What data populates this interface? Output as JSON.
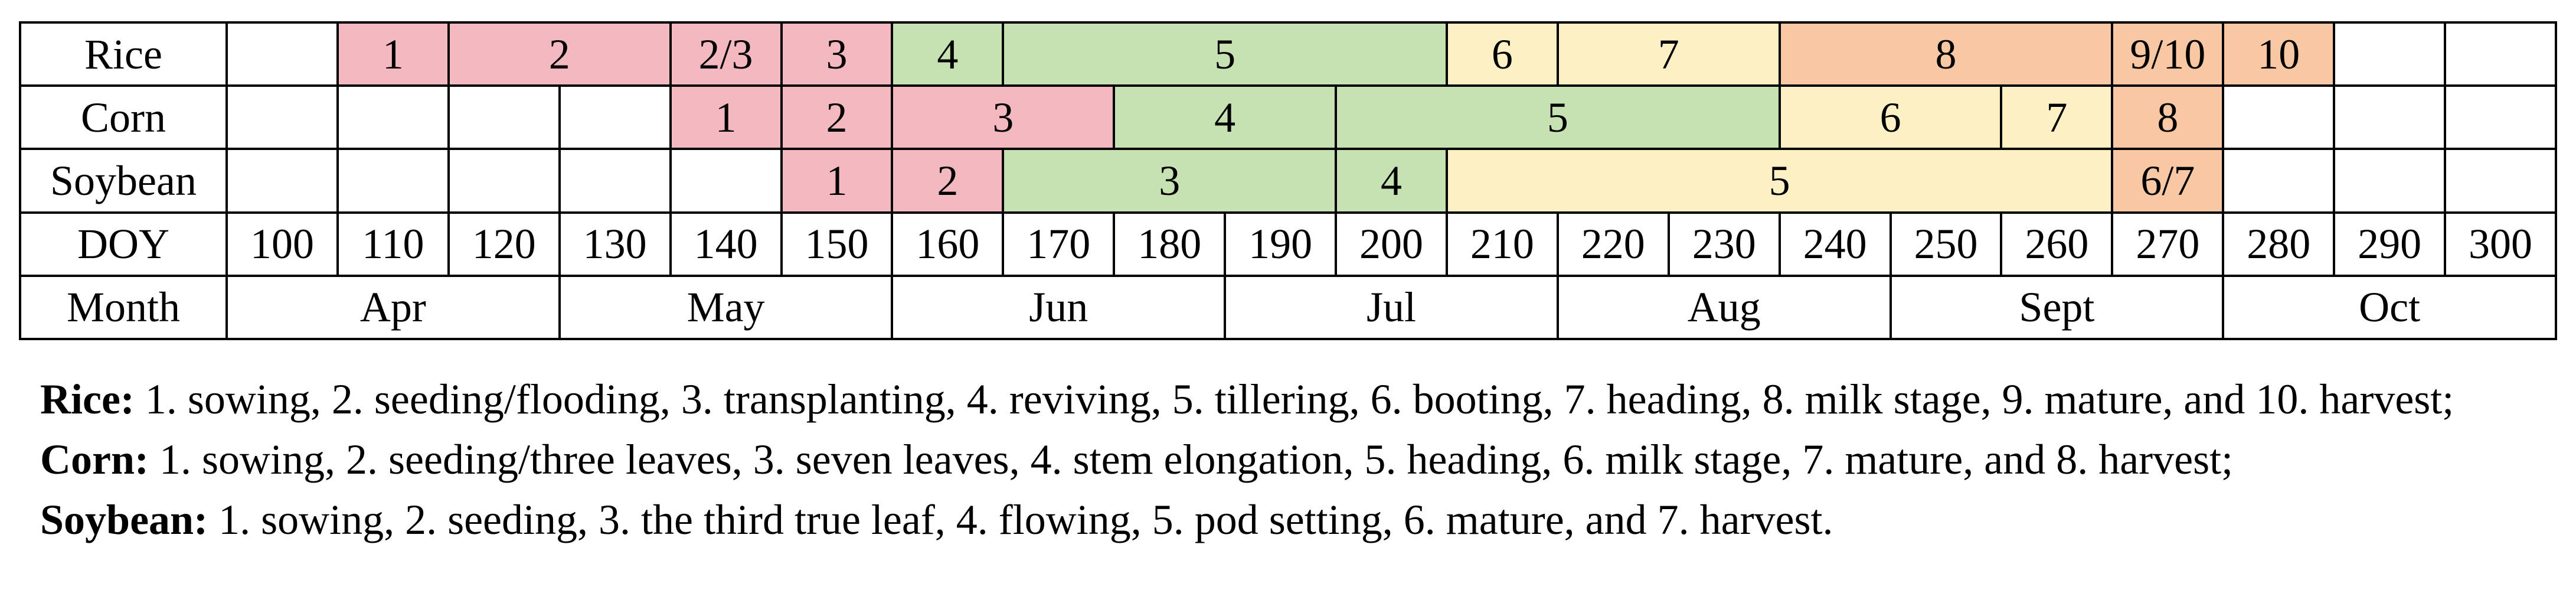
{
  "chart_data": {
    "type": "table",
    "rows": [
      "Rice",
      "Corn",
      "Soybean",
      "DOY",
      "Month"
    ],
    "doy": [
      "100",
      "110",
      "120",
      "130",
      "140",
      "150",
      "160",
      "170",
      "180",
      "190",
      "200",
      "210",
      "220",
      "230",
      "240",
      "250",
      "260",
      "270",
      "280",
      "290",
      "300"
    ],
    "months": [
      {
        "label": "Apr",
        "start": 100,
        "end": 120
      },
      {
        "label": "May",
        "start": 130,
        "end": 150
      },
      {
        "label": "Jun",
        "start": 160,
        "end": 180
      },
      {
        "label": "Jul",
        "start": 190,
        "end": 210
      },
      {
        "label": "Aug",
        "start": 220,
        "end": 240
      },
      {
        "label": "Sept",
        "start": 250,
        "end": 270
      },
      {
        "label": "Oct",
        "start": 280,
        "end": 300
      }
    ],
    "crops": [
      {
        "name": "Rice",
        "stages": [
          {
            "label": "1",
            "start": 110,
            "end": 110,
            "color": "#F4B8C0"
          },
          {
            "label": "2",
            "start": 120,
            "end": 130,
            "color": "#F4B8C0"
          },
          {
            "label": "2/3",
            "start": 140,
            "end": 140,
            "color": "#F4B8C0"
          },
          {
            "label": "3",
            "start": 150,
            "end": 150,
            "color": "#F4B8C0"
          },
          {
            "label": "4",
            "start": 160,
            "end": 160,
            "color": "#C6E2B3"
          },
          {
            "label": "5",
            "start": 170,
            "end": 200,
            "color": "#C6E2B3"
          },
          {
            "label": "6",
            "start": 210,
            "end": 210,
            "color": "#FDF0C4"
          },
          {
            "label": "7",
            "start": 220,
            "end": 230,
            "color": "#FDF0C4"
          },
          {
            "label": "8",
            "start": 240,
            "end": 260,
            "color": "#F8C8A4"
          },
          {
            "label": "9/10",
            "start": 270,
            "end": 270,
            "color": "#F8C8A4"
          },
          {
            "label": "10",
            "start": 280,
            "end": 280,
            "color": "#F8C8A4"
          }
        ]
      },
      {
        "name": "Corn",
        "stages": [
          {
            "label": "1",
            "start": 140,
            "end": 140,
            "color": "#F4B8C0"
          },
          {
            "label": "2",
            "start": 150,
            "end": 150,
            "color": "#F4B8C0"
          },
          {
            "label": "3",
            "start": 160,
            "end": 170,
            "color": "#F4B8C0"
          },
          {
            "label": "4",
            "start": 180,
            "end": 190,
            "color": "#C6E2B3"
          },
          {
            "label": "5",
            "start": 200,
            "end": 230,
            "color": "#C6E2B3"
          },
          {
            "label": "6",
            "start": 240,
            "end": 250,
            "color": "#FDF0C4"
          },
          {
            "label": "7",
            "start": 260,
            "end": 260,
            "color": "#FDF0C4"
          },
          {
            "label": "8",
            "start": 270,
            "end": 270,
            "color": "#F8C8A4"
          }
        ]
      },
      {
        "name": "Soybean",
        "stages": [
          {
            "label": "1",
            "start": 150,
            "end": 150,
            "color": "#F4B8C0"
          },
          {
            "label": "2",
            "start": 160,
            "end": 160,
            "color": "#F4B8C0"
          },
          {
            "label": "3",
            "start": 170,
            "end": 190,
            "color": "#C6E2B3"
          },
          {
            "label": "4",
            "start": 200,
            "end": 200,
            "color": "#C6E2B3"
          },
          {
            "label": "5",
            "start": 210,
            "end": 260,
            "color": "#FDF0C4"
          },
          {
            "label": "6/7",
            "start": 270,
            "end": 270,
            "color": "#F8C8A4"
          }
        ]
      }
    ]
  },
  "legend": {
    "rice": {
      "name": "Rice:",
      "text": " 1. sowing, 2. seeding/flooding, 3. transplanting, 4. reviving, 5. tillering, 6. booting, 7. heading, 8. milk stage, 9. mature, and 10. harvest;"
    },
    "corn": {
      "name": "Corn:",
      "text": " 1. sowing, 2. seeding/three leaves, 3. seven leaves, 4. stem elongation, 5. heading, 6. milk stage, 7. mature, and 8. harvest;"
    },
    "soybean": {
      "name": "Soybean:",
      "text": " 1. sowing, 2. seeding, 3. the third true leaf, 4. flowing, 5. pod setting, 6. mature, and 7. harvest."
    }
  }
}
